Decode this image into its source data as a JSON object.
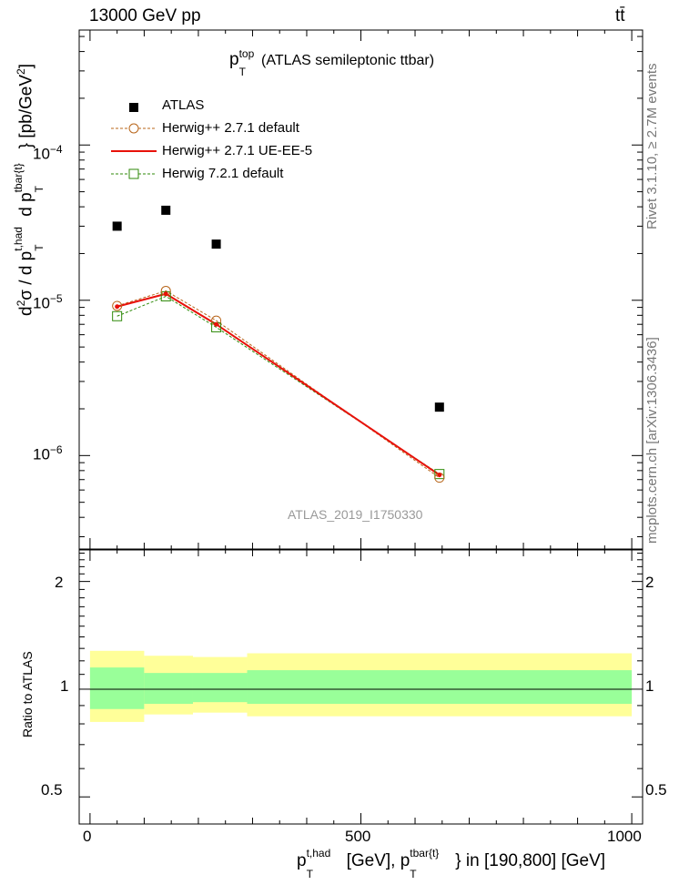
{
  "header": {
    "left": "13000 GeV pp",
    "right": "tt̄"
  },
  "side": {
    "rivet": "Rivet 3.1.10, ≥ 2.7M events",
    "mcplots": "mcplots.cern.ch [arXiv:1306.3436]"
  },
  "colors": {
    "atlas": "#000000",
    "herwigpp_default": "#b8651a",
    "herwigpp_ueee5": "#e8110a",
    "herwig7": "#2f8a0a",
    "band_inner": "#99ff99",
    "band_outer": "#ffff99"
  },
  "chart_data": {
    "type": "scatter",
    "title": "p_T^top (ATLAS semileptonic ttbar)",
    "watermark": "ATLAS_2019_I1750330",
    "xlabel": "p_T^{t,had} [GeV], p_T^{tbar{t}} in [190,800] [GeV]",
    "ylabel": "d²σ / d p_T^{t,had} d p_T^{tbar{t}} [pb/GeV²]",
    "ratio_ylabel": "Ratio to ATLAS",
    "xlim": [
      -20,
      1020
    ],
    "ylim": [
      2.5e-07,
      0.00055
    ],
    "yscale": "log",
    "ratio_ylim": [
      0.42,
      2.45
    ],
    "ratio_yscale": "log",
    "x_ticks": [
      0,
      500,
      1000
    ],
    "y_ticks": [
      "10⁻⁶",
      "10⁻⁵",
      "10⁻⁴"
    ],
    "ratio_ticks": [
      "0.5",
      "1",
      "2"
    ],
    "legend": [
      "ATLAS",
      "Herwig++ 2.7.1 default",
      "Herwig++ 2.7.1 UE-EE-5",
      "Herwig 7.2.1 default"
    ],
    "series": [
      {
        "name": "ATLAS",
        "x": [
          50,
          140,
          233,
          645
        ],
        "y": [
          3e-05,
          3.8e-05,
          2.3e-05,
          2.05e-06
        ]
      },
      {
        "name": "Herwig++ 2.7.1 default",
        "x": [
          50,
          140,
          233,
          645
        ],
        "y": [
          9.2e-06,
          1.15e-05,
          7.4e-06,
          7.2e-07
        ]
      },
      {
        "name": "Herwig++ 2.7.1 UE-EE-5",
        "x": [
          50,
          140,
          233,
          645
        ],
        "y": [
          9.1e-06,
          1.1e-05,
          7e-06,
          7.5e-07
        ]
      },
      {
        "name": "Herwig 7.2.1 default",
        "x": [
          50,
          140,
          233,
          645
        ],
        "y": [
          7.9e-06,
          1.06e-05,
          6.7e-06,
          7.6e-07
        ]
      }
    ],
    "ratio_bands": [
      {
        "x0": 0,
        "x1": 100,
        "inner": [
          0.88,
          1.15
        ],
        "outer": [
          0.81,
          1.28
        ]
      },
      {
        "x0": 100,
        "x1": 190,
        "inner": [
          0.91,
          1.11
        ],
        "outer": [
          0.85,
          1.24
        ]
      },
      {
        "x0": 190,
        "x1": 290,
        "inner": [
          0.92,
          1.11
        ],
        "outer": [
          0.86,
          1.23
        ]
      },
      {
        "x0": 290,
        "x1": 1000,
        "inner": [
          0.91,
          1.13
        ],
        "outer": [
          0.84,
          1.26
        ]
      }
    ]
  }
}
